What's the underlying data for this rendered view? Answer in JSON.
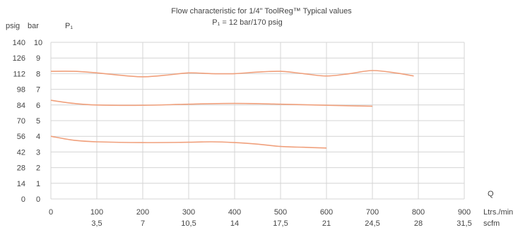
{
  "chart_data": {
    "type": "line",
    "title": "Flow characteristic for 1/4\" ToolReg™ Typical values",
    "subtitle": "P₁ = 12 bar/170 psig",
    "y_header_psig": "psig",
    "y_header_bar": "bar",
    "y_header_p": "P₁",
    "x_header": "Q",
    "x_unit_primary": "Ltrs./min",
    "x_unit_secondary": "scfm",
    "grid": true,
    "xlim": [
      0,
      900
    ],
    "ylim": [
      0,
      10
    ],
    "x_ticks": [
      "0",
      "100",
      "200",
      "300",
      "400",
      "500",
      "600",
      "700",
      "800",
      "900"
    ],
    "x_ticks_scfm": [
      "",
      "3,5",
      "7",
      "10,5",
      "14",
      "17,5",
      "21",
      "24,5",
      "28",
      "31,5"
    ],
    "y_ticks_psig": [
      "0",
      "14",
      "28",
      "42",
      "56",
      "70",
      "84",
      "98",
      "112",
      "126",
      "140"
    ],
    "y_ticks_bar": [
      "0",
      "1",
      "2",
      "3",
      "4",
      "5",
      "6",
      "7",
      "8",
      "9",
      "10"
    ],
    "colors": {
      "series": "#f0a07c",
      "grid": "#d4d4d4",
      "text": "#444444"
    },
    "series": [
      {
        "values": [
          [
            0,
            8.15
          ],
          [
            50,
            8.15
          ],
          [
            100,
            8.05
          ],
          [
            150,
            7.9
          ],
          [
            200,
            7.8
          ],
          [
            250,
            7.9
          ],
          [
            300,
            8.05
          ],
          [
            350,
            8.0
          ],
          [
            400,
            8.0
          ],
          [
            450,
            8.1
          ],
          [
            500,
            8.15
          ],
          [
            550,
            8.0
          ],
          [
            600,
            7.85
          ],
          [
            650,
            8.0
          ],
          [
            700,
            8.2
          ],
          [
            750,
            8.05
          ],
          [
            790,
            7.85
          ]
        ]
      },
      {
        "values": [
          [
            0,
            6.3
          ],
          [
            50,
            6.1
          ],
          [
            100,
            6.0
          ],
          [
            200,
            5.98
          ],
          [
            300,
            6.05
          ],
          [
            400,
            6.1
          ],
          [
            500,
            6.05
          ],
          [
            600,
            5.98
          ],
          [
            650,
            5.95
          ],
          [
            700,
            5.92
          ]
        ]
      },
      {
        "values": [
          [
            0,
            4.0
          ],
          [
            50,
            3.75
          ],
          [
            100,
            3.65
          ],
          [
            200,
            3.6
          ],
          [
            300,
            3.62
          ],
          [
            350,
            3.65
          ],
          [
            400,
            3.6
          ],
          [
            450,
            3.5
          ],
          [
            500,
            3.35
          ],
          [
            550,
            3.3
          ],
          [
            600,
            3.25
          ]
        ]
      }
    ]
  }
}
